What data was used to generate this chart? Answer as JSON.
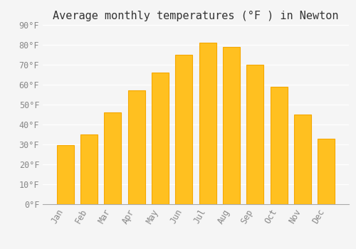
{
  "title": "Average monthly temperatures (°F ) in Newton",
  "months": [
    "Jan",
    "Feb",
    "Mar",
    "Apr",
    "May",
    "Jun",
    "Jul",
    "Aug",
    "Sep",
    "Oct",
    "Nov",
    "Dec"
  ],
  "values": [
    29.5,
    35.0,
    46.0,
    57.0,
    66.0,
    75.0,
    81.0,
    79.0,
    70.0,
    59.0,
    45.0,
    33.0
  ],
  "bar_color": "#FFC020",
  "bar_edge_color": "#F5A800",
  "background_color": "#F5F5F5",
  "grid_color": "#FFFFFF",
  "text_color": "#888888",
  "ylim": [
    0,
    90
  ],
  "ytick_step": 10,
  "title_fontsize": 11,
  "tick_fontsize": 8.5,
  "font_family": "monospace"
}
